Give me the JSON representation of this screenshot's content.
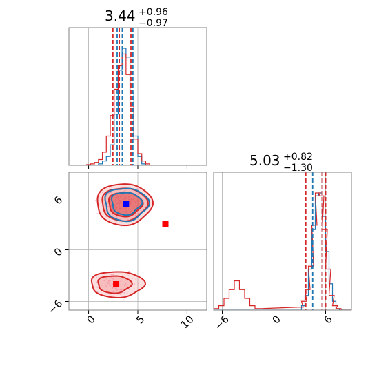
{
  "colors": {
    "red": "#d62728",
    "blue": "#1f77b4",
    "grid": "#b0b0b0",
    "frame": "#808080",
    "fill_red": "#f08080",
    "pink_dots": "#f5a0c8",
    "marker_blue": "#0000ff",
    "marker_red": "#ff0000"
  },
  "titles": {
    "x": {
      "value": "3.44",
      "plus": "+0.96",
      "minus": "−0.97"
    },
    "y": {
      "value": "5.03",
      "plus": "+0.82",
      "minus": "−1.30"
    }
  },
  "chart_data": [
    {
      "type": "histogram",
      "panel": "marginal-x",
      "xlim": [
        -2,
        12
      ],
      "xticks": [
        0,
        5,
        10
      ],
      "series": [
        {
          "color": "blue",
          "bins": [
            1.0,
            1.4,
            1.8,
            2.2,
            2.6,
            3.0,
            3.4,
            3.8,
            4.2,
            4.6,
            5.0,
            5.4
          ],
          "counts": [
            1,
            3,
            6,
            14,
            35,
            65,
            80,
            74,
            50,
            20,
            6,
            1
          ]
        },
        {
          "color": "red",
          "bins": [
            -0.2,
            0.2,
            0.6,
            1.0,
            1.4,
            1.8,
            2.2,
            2.6,
            3.0,
            3.4,
            3.8,
            4.2,
            4.6,
            5.0,
            5.4,
            5.8
          ],
          "counts": [
            0.5,
            1,
            2,
            4,
            9,
            20,
            34,
            52,
            68,
            76,
            62,
            40,
            18,
            8,
            3,
            1
          ]
        }
      ],
      "quantile_lines": {
        "blue": [
          2.9,
          3.42,
          4.5
        ],
        "red": [
          2.47,
          3.12,
          4.3
        ]
      }
    },
    {
      "type": "contour",
      "panel": "joint",
      "xlim": [
        -2,
        12
      ],
      "ylim": [
        -7,
        9
      ],
      "xticks": [
        0,
        5,
        10
      ],
      "yticks": [
        -6,
        0,
        6
      ],
      "markers": [
        {
          "color": "marker_blue",
          "x": 3.8,
          "y": 5.3
        },
        {
          "color": "marker_red",
          "x": 7.8,
          "y": 3.0
        },
        {
          "color": "marker_red",
          "x": 2.8,
          "y": -4.0
        }
      ]
    },
    {
      "type": "histogram",
      "panel": "marginal-y",
      "xlim": [
        -7,
        9
      ],
      "xticks": [
        -6,
        0,
        6
      ],
      "series": [
        {
          "color": "blue",
          "bins": [
            3.2,
            3.6,
            4.0,
            4.4,
            4.8,
            5.2,
            5.6,
            6.0,
            6.4,
            6.8,
            7.2
          ],
          "counts": [
            3,
            10,
            28,
            55,
            78,
            80,
            64,
            40,
            18,
            6,
            1
          ]
        },
        {
          "color": "red",
          "bins": [
            -7.0,
            -6.4,
            -5.8,
            -5.2,
            -4.6,
            -4.0,
            -3.4,
            -2.8,
            -2.2,
            2.8,
            3.2,
            3.6,
            4.0,
            4.4,
            4.8,
            5.2,
            5.6,
            6.0,
            6.4,
            6.8,
            7.2
          ],
          "counts": [
            1,
            3,
            8,
            14,
            20,
            14,
            8,
            3,
            1,
            2,
            6,
            14,
            30,
            58,
            80,
            78,
            55,
            28,
            10,
            3,
            1
          ]
        }
      ],
      "quantile_lines": {
        "blue": [
          4.5,
          5.6,
          6.0
        ],
        "red": [
          3.7,
          5.6,
          6.0
        ]
      }
    }
  ]
}
